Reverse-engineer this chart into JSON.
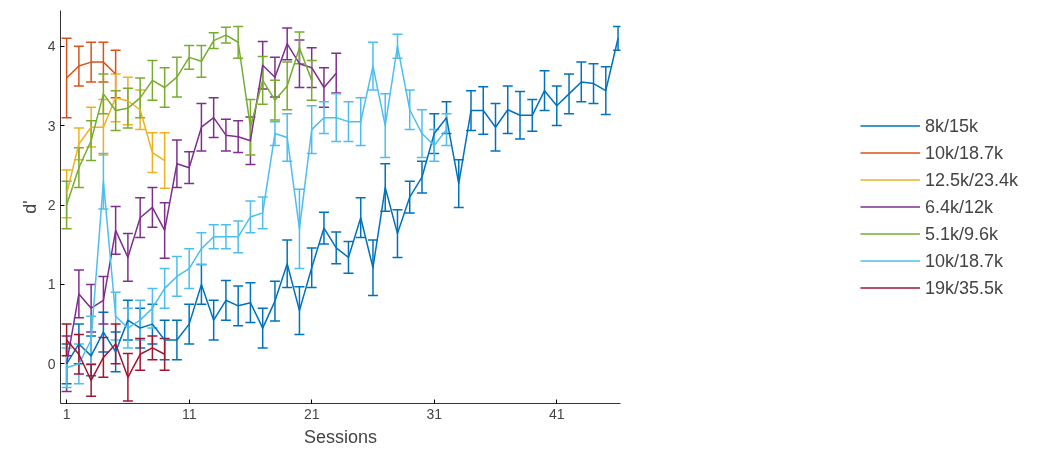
{
  "chart_data": {
    "type": "line",
    "xlabel": "Sessions",
    "ylabel": "d'",
    "xlim": [
      0.5,
      46.2
    ],
    "ylim": [
      -0.5,
      4.45
    ],
    "xticks": [
      1,
      11,
      21,
      31,
      41
    ],
    "yticks": [
      0,
      1,
      2,
      3,
      4
    ],
    "grid": false,
    "legend": "right",
    "marker": "none",
    "line_style": "solid",
    "series": [
      {
        "name": "8k/15k",
        "color": "#0072bd",
        "x": [
          1,
          2,
          3,
          4,
          5,
          6,
          7,
          8,
          9,
          10,
          11,
          12,
          13,
          14,
          15,
          16,
          17,
          18,
          19,
          20,
          21,
          22,
          23,
          24,
          25,
          26,
          27,
          28,
          29,
          30,
          31,
          32,
          33,
          34,
          35,
          36,
          37,
          38,
          39,
          40,
          41,
          42,
          43,
          44,
          45,
          46
        ],
        "values": [
          0.0,
          0.25,
          0.1,
          0.4,
          0.15,
          0.55,
          0.45,
          0.5,
          0.3,
          0.3,
          0.5,
          1.0,
          0.55,
          0.8,
          0.73,
          0.77,
          0.45,
          0.79,
          1.26,
          0.67,
          1.21,
          1.71,
          1.46,
          1.34,
          1.84,
          1.21,
          2.22,
          1.64,
          2.1,
          2.35,
          2.9,
          3.1,
          2.27,
          3.19,
          3.19,
          2.98,
          3.2,
          3.13,
          3.13,
          3.44,
          3.25,
          3.4,
          3.55,
          3.53,
          3.44,
          4.1
        ],
        "errors": [
          0.25,
          0.25,
          0.25,
          0.25,
          0.25,
          0.25,
          0.25,
          0.25,
          0.25,
          0.25,
          0.25,
          0.25,
          0.25,
          0.25,
          0.25,
          0.25,
          0.25,
          0.25,
          0.3,
          0.3,
          0.25,
          0.2,
          0.2,
          0.2,
          0.25,
          0.35,
          0.3,
          0.3,
          0.2,
          0.2,
          0.25,
          0.2,
          0.3,
          0.25,
          0.3,
          0.3,
          0.3,
          0.3,
          0.2,
          0.25,
          0.25,
          0.25,
          0.25,
          0.25,
          0.3,
          0.15
        ]
      },
      {
        "name": "10k/18.7k",
        "color": "#d95319",
        "x": [
          1,
          2,
          3,
          4,
          5
        ],
        "values": [
          3.6,
          3.75,
          3.8,
          3.8,
          3.65
        ],
        "errors": [
          0.5,
          0.25,
          0.25,
          0.25,
          0.3
        ]
      },
      {
        "name": "12.5k/23.4k",
        "color": "#edb120",
        "x": [
          1,
          2,
          3,
          4,
          5,
          6,
          7,
          8,
          9
        ],
        "values": [
          2.14,
          2.77,
          2.98,
          2.98,
          3.35,
          3.31,
          3.2,
          2.66,
          2.56
        ],
        "errors": [
          0.3,
          0.2,
          0.25,
          0.35,
          0.3,
          0.3,
          0.25,
          0.25,
          0.35
        ]
      },
      {
        "name": "6.4k/12k",
        "color": "#7e2f8e",
        "x": [
          1,
          2,
          3,
          4,
          5,
          6,
          7,
          8,
          9,
          10,
          11,
          12,
          13,
          14,
          15,
          16,
          17,
          18,
          19,
          20,
          21,
          22,
          23
        ],
        "values": [
          0.0,
          0.88,
          0.7,
          0.8,
          1.68,
          1.34,
          1.84,
          1.97,
          1.68,
          2.52,
          2.47,
          2.98,
          3.1,
          2.88,
          2.86,
          2.81,
          3.76,
          3.61,
          4.03,
          3.78,
          3.73,
          3.48,
          3.66
        ],
        "errors": [
          0.35,
          0.3,
          0.3,
          0.3,
          0.3,
          0.3,
          0.25,
          0.25,
          0.35,
          0.3,
          0.2,
          0.3,
          0.25,
          0.2,
          0.2,
          0.3,
          0.3,
          0.25,
          0.2,
          0.3,
          0.25,
          0.25,
          0.25
        ]
      },
      {
        "name": "5.1k/9.6k",
        "color": "#77ac30",
        "x": [
          1,
          2,
          3,
          4,
          5,
          6,
          7,
          8,
          9,
          10,
          11,
          12,
          13,
          14,
          15,
          16,
          17,
          18,
          19,
          20,
          21
        ],
        "values": [
          2.0,
          2.47,
          2.81,
          3.4,
          3.19,
          3.22,
          3.35,
          3.57,
          3.48,
          3.61,
          3.86,
          3.81,
          4.07,
          4.14,
          4.05,
          2.98,
          3.57,
          3.32,
          3.5,
          3.98,
          3.57
        ],
        "errors": [
          0.3,
          0.25,
          0.25,
          0.25,
          0.25,
          0.25,
          0.25,
          0.25,
          0.25,
          0.25,
          0.15,
          0.2,
          0.1,
          0.1,
          0.2,
          0.35,
          0.3,
          0.25,
          0.3,
          0.2,
          0.25
        ]
      },
      {
        "name": "10k/18.7k",
        "color": "#4dbeee",
        "x": [
          1,
          2,
          3,
          4,
          5,
          6,
          7,
          8,
          9,
          10,
          11,
          12,
          13,
          14,
          15,
          16,
          17,
          18,
          19,
          20,
          21,
          22,
          23,
          24,
          25,
          26,
          27,
          28,
          29,
          30,
          31,
          32
        ],
        "values": [
          -0.05,
          0.0,
          0.3,
          2.3,
          0.6,
          0.45,
          0.55,
          0.7,
          0.95,
          1.1,
          1.2,
          1.45,
          1.6,
          1.6,
          1.6,
          1.85,
          1.9,
          2.9,
          2.85,
          1.7,
          2.95,
          3.1,
          3.1,
          3.05,
          3.05,
          3.75,
          3.0,
          4.0,
          3.2,
          2.9,
          2.75,
          2.95
        ],
        "errors": [
          0.25,
          0.25,
          0.3,
          0.35,
          0.3,
          0.25,
          0.25,
          0.25,
          0.25,
          0.25,
          0.25,
          0.2,
          0.15,
          0.15,
          0.2,
          0.2,
          0.2,
          0.15,
          0.3,
          0.5,
          0.3,
          0.2,
          0.3,
          0.25,
          0.3,
          0.3,
          0.4,
          0.15,
          0.25,
          0.3,
          0.2,
          0.2
        ]
      },
      {
        "name": "19k/35.5k",
        "color": "#a2142f",
        "x": [
          1,
          2,
          3,
          4,
          5,
          6,
          7,
          8,
          9
        ],
        "values": [
          0.3,
          0.12,
          -0.21,
          0.08,
          0.25,
          -0.17,
          0.12,
          0.2,
          0.12
        ],
        "errors": [
          0.2,
          0.25,
          0.2,
          0.25,
          0.25,
          0.3,
          0.2,
          0.15,
          0.2
        ]
      }
    ]
  }
}
